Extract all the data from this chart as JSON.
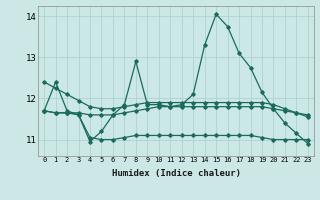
{
  "xlabel": "Humidex (Indice chaleur)",
  "x": [
    0,
    1,
    2,
    3,
    4,
    5,
    6,
    7,
    8,
    9,
    10,
    11,
    12,
    13,
    14,
    15,
    16,
    17,
    18,
    19,
    20,
    21,
    22,
    23
  ],
  "series": [
    {
      "y": [
        11.7,
        12.4,
        11.7,
        11.6,
        10.95,
        11.2,
        11.6,
        11.85,
        12.9,
        11.85,
        11.85,
        11.8,
        11.85,
        12.1,
        13.3,
        14.05,
        13.75,
        13.1,
        12.75,
        12.15,
        11.75,
        11.4,
        11.15,
        10.9
      ],
      "color": "#1a6b5a",
      "marker": "D",
      "markersize": 1.8,
      "linewidth": 0.9
    },
    {
      "y": [
        12.4,
        12.25,
        12.1,
        11.95,
        11.8,
        11.75,
        11.75,
        11.8,
        11.85,
        11.9,
        11.9,
        11.9,
        11.9,
        11.9,
        11.9,
        11.9,
        11.9,
        11.9,
        11.9,
        11.9,
        11.85,
        11.75,
        11.65,
        11.55
      ],
      "color": "#1a6b5a",
      "marker": "D",
      "markersize": 1.8,
      "linewidth": 0.9
    },
    {
      "y": [
        11.7,
        11.65,
        11.65,
        11.6,
        11.05,
        11.0,
        11.0,
        11.05,
        11.1,
        11.1,
        11.1,
        11.1,
        11.1,
        11.1,
        11.1,
        11.1,
        11.1,
        11.1,
        11.1,
        11.05,
        11.0,
        11.0,
        11.0,
        11.0
      ],
      "color": "#1a6b5a",
      "marker": "D",
      "markersize": 1.8,
      "linewidth": 0.9
    },
    {
      "y": [
        11.7,
        11.65,
        11.65,
        11.65,
        11.6,
        11.6,
        11.6,
        11.65,
        11.7,
        11.75,
        11.8,
        11.8,
        11.8,
        11.8,
        11.8,
        11.8,
        11.8,
        11.8,
        11.8,
        11.8,
        11.75,
        11.7,
        11.65,
        11.6
      ],
      "color": "#1a6b5a",
      "marker": "D",
      "markersize": 1.8,
      "linewidth": 0.9
    }
  ],
  "background_color": "#cce8e6",
  "grid_color": "#aacfcc",
  "ylim": [
    10.6,
    14.25
  ],
  "yticks": [
    11,
    12,
    13,
    14
  ],
  "xlim": [
    -0.5,
    23.5
  ]
}
